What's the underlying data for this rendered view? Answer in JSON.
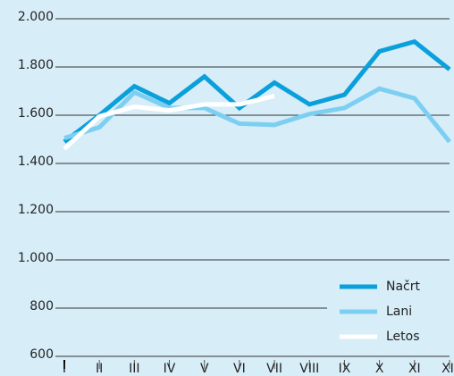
{
  "chart_data": {
    "type": "line",
    "categories": [
      "I",
      "II",
      "III",
      "IV",
      "V",
      "VI",
      "VII",
      "VIII",
      "IX",
      "X",
      "XI",
      "XII"
    ],
    "series": [
      {
        "name": "Načrt",
        "color": "#0aa0dc",
        "values": [
          1490,
          1600,
          1720,
          1650,
          1760,
          1630,
          1735,
          1645,
          1685,
          1865,
          1905,
          1790
        ]
      },
      {
        "name": "Lani",
        "color": "#7dcff2",
        "values": [
          1505,
          1550,
          1695,
          1630,
          1630,
          1565,
          1560,
          1605,
          1630,
          1710,
          1670,
          1490
        ]
      },
      {
        "name": "Letos",
        "color": "#ffffff",
        "values": [
          1460,
          1595,
          1635,
          1620,
          1645,
          1645,
          1680,
          null,
          null,
          null,
          null,
          null
        ]
      }
    ],
    "ylim": [
      600,
      2000
    ],
    "yticks": [
      600,
      800,
      {
        "value": 1000,
        "label": "1.000"
      },
      {
        "value": 1200,
        "label": "1.200"
      },
      {
        "value": 1400,
        "label": "1.400"
      },
      {
        "value": 1600,
        "label": "1.600"
      },
      {
        "value": 1800,
        "label": "1.800"
      },
      {
        "value": 2000,
        "label": "2.000"
      }
    ],
    "grid": true,
    "legend": "lower right"
  }
}
